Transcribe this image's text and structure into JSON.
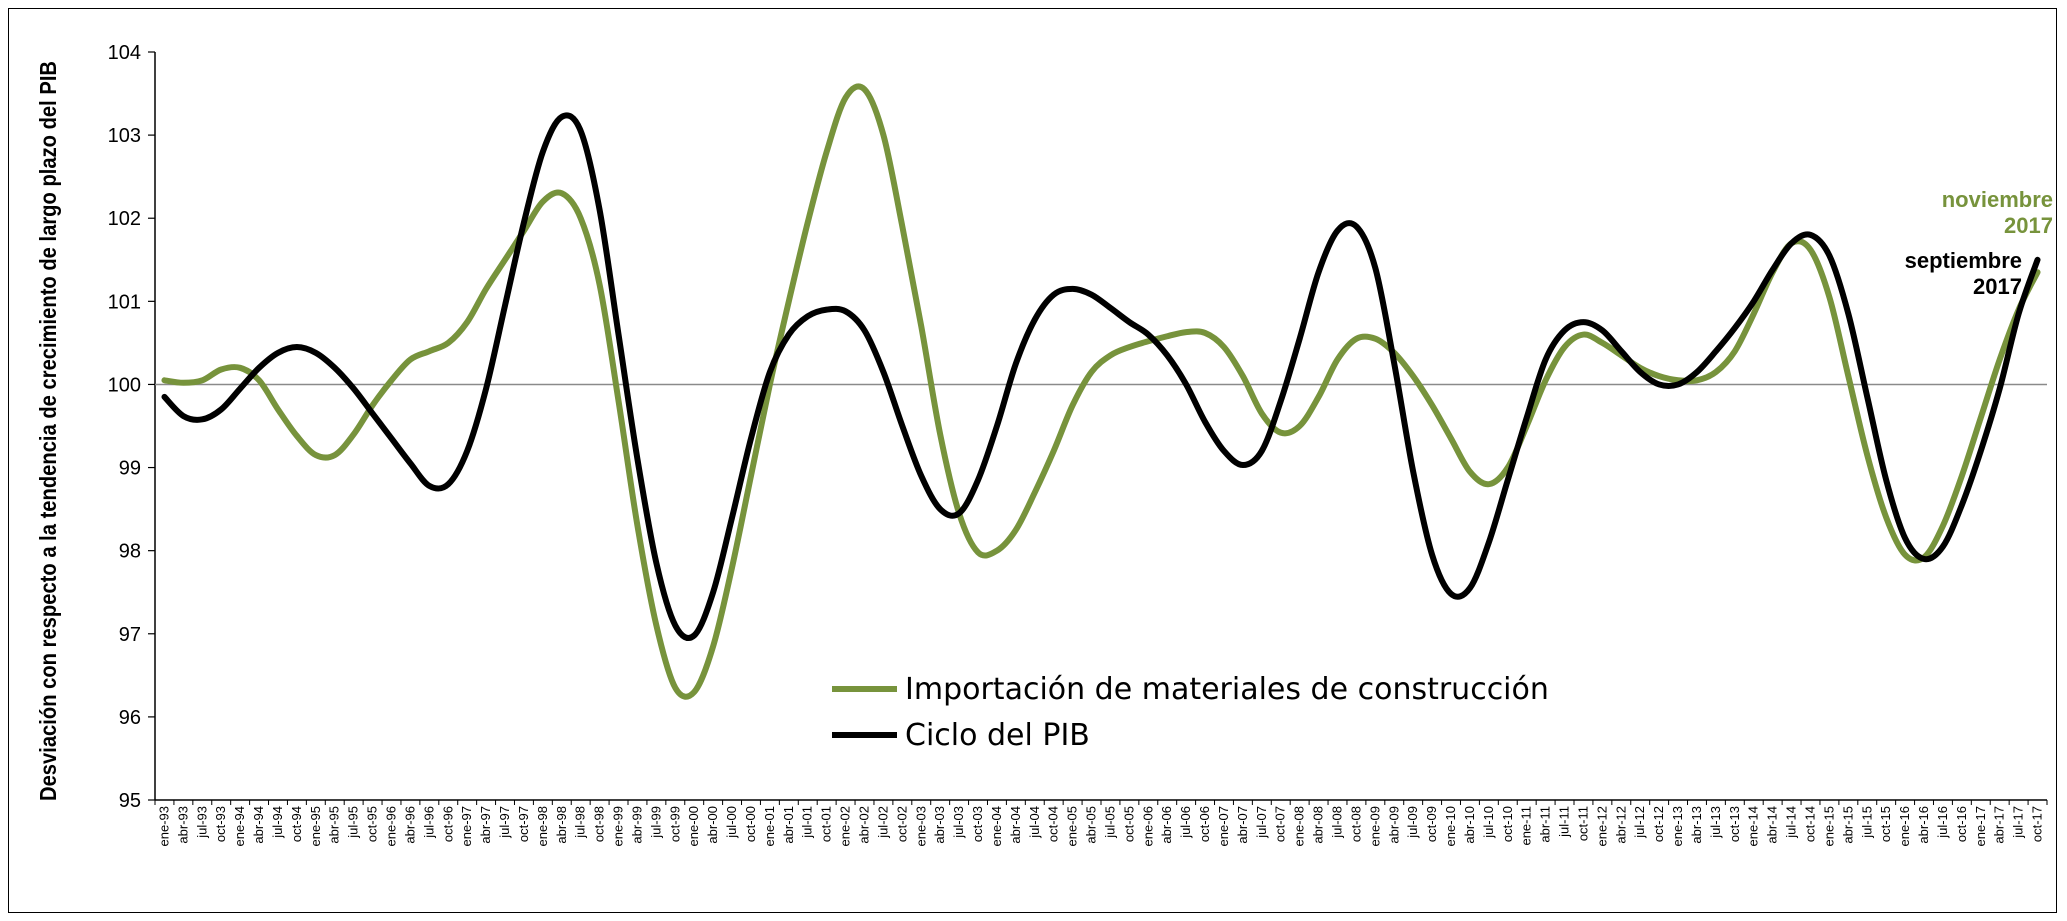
{
  "chart_data": {
    "type": "line",
    "title": "",
    "ylabel": "Desviación con respecto a la tendencia de crecimiento de largo plazo del PIB",
    "xlabel": "",
    "ylim": [
      95,
      104
    ],
    "yticks": [
      95,
      96,
      97,
      98,
      99,
      100,
      101,
      102,
      103,
      104
    ],
    "reference_line": 100,
    "grid": false,
    "legend_position": "center-bottom",
    "x_tick_labels": [
      "ene-93",
      "abr-93",
      "jul-93",
      "oct-93",
      "ene-94",
      "abr-94",
      "jul-94",
      "oct-94",
      "ene-95",
      "abr-95",
      "jul-95",
      "oct-95",
      "ene-96",
      "abr-96",
      "jul-96",
      "oct-96",
      "ene-97",
      "abr-97",
      "jul-97",
      "oct-97",
      "ene-98",
      "abr-98",
      "jul-98",
      "oct-98",
      "ene-99",
      "abr-99",
      "jul-99",
      "oct-99",
      "ene-00",
      "abr-00",
      "jul-00",
      "oct-00",
      "ene-01",
      "abr-01",
      "jul-01",
      "oct-01",
      "ene-02",
      "abr-02",
      "jul-02",
      "oct-02",
      "ene-03",
      "abr-03",
      "jul-03",
      "oct-03",
      "ene-04",
      "abr-04",
      "jul-04",
      "oct-04",
      "ene-05",
      "abr-05",
      "jul-05",
      "oct-05",
      "ene-06",
      "abr-06",
      "jul-06",
      "oct-06",
      "ene-07",
      "abr-07",
      "jul-07",
      "oct-07",
      "ene-08",
      "abr-08",
      "jul-08",
      "oct-08",
      "ene-09",
      "abr-09",
      "jul-09",
      "oct-09",
      "ene-10",
      "abr-10",
      "jul-10",
      "oct-10",
      "ene-11",
      "abr-11",
      "jul-11",
      "oct-11",
      "ene-12",
      "abr-12",
      "jul-12",
      "oct-12",
      "ene-13",
      "abr-13",
      "jul-13",
      "oct-13",
      "ene-14",
      "abr-14",
      "jul-14",
      "oct-14",
      "ene-15",
      "abr-15",
      "jul-15",
      "oct-15",
      "ene-16",
      "abr-16",
      "jul-16",
      "oct-16",
      "ene-17",
      "abr-17",
      "jul-17",
      "oct-17"
    ],
    "series": [
      {
        "name": "Importación de materiales de construcción",
        "color": "#77933c",
        "end_label": [
          "noviembre",
          "2017"
        ],
        "points": [
          [
            "ene-93",
            100.05
          ],
          [
            "abr-93",
            100.02
          ],
          [
            "jul-93",
            100.05
          ],
          [
            "oct-93",
            100.18
          ],
          [
            "ene-94",
            100.2
          ],
          [
            "abr-94",
            100.05
          ],
          [
            "jul-94",
            99.7
          ],
          [
            "oct-94",
            99.38
          ],
          [
            "ene-95",
            99.15
          ],
          [
            "abr-95",
            99.15
          ],
          [
            "jul-95",
            99.4
          ],
          [
            "oct-95",
            99.75
          ],
          [
            "ene-96",
            100.05
          ],
          [
            "abr-96",
            100.3
          ],
          [
            "jul-96",
            100.4
          ],
          [
            "oct-96",
            100.5
          ],
          [
            "ene-97",
            100.75
          ],
          [
            "abr-97",
            101.15
          ],
          [
            "jul-97",
            101.5
          ],
          [
            "oct-97",
            101.85
          ],
          [
            "ene-98",
            102.2
          ],
          [
            "abr-98",
            102.3
          ],
          [
            "jul-98",
            102.0
          ],
          [
            "oct-98",
            101.2
          ],
          [
            "ene-99",
            99.8
          ],
          [
            "abr-99",
            98.3
          ],
          [
            "jul-99",
            97.1
          ],
          [
            "oct-99",
            96.35
          ],
          [
            "ene-00",
            96.3
          ],
          [
            "abr-00",
            96.85
          ],
          [
            "jul-00",
            97.8
          ],
          [
            "oct-00",
            98.9
          ],
          [
            "ene-01",
            100.0
          ],
          [
            "abr-01",
            101.0
          ],
          [
            "jul-01",
            101.95
          ],
          [
            "oct-01",
            102.8
          ],
          [
            "ene-02",
            103.45
          ],
          [
            "abr-02",
            103.55
          ],
          [
            "jul-02",
            103.0
          ],
          [
            "oct-02",
            101.9
          ],
          [
            "ene-03",
            100.7
          ],
          [
            "abr-03",
            99.4
          ],
          [
            "jul-03",
            98.45
          ],
          [
            "oct-03",
            97.98
          ],
          [
            "ene-04",
            98.0
          ],
          [
            "abr-04",
            98.25
          ],
          [
            "jul-04",
            98.7
          ],
          [
            "oct-04",
            99.2
          ],
          [
            "ene-05",
            99.75
          ],
          [
            "abr-05",
            100.15
          ],
          [
            "jul-05",
            100.35
          ],
          [
            "oct-05",
            100.45
          ],
          [
            "ene-06",
            100.52
          ],
          [
            "abr-06",
            100.58
          ],
          [
            "jul-06",
            100.63
          ],
          [
            "oct-06",
            100.62
          ],
          [
            "ene-07",
            100.45
          ],
          [
            "abr-07",
            100.1
          ],
          [
            "jul-07",
            99.65
          ],
          [
            "oct-07",
            99.42
          ],
          [
            "ene-08",
            99.5
          ],
          [
            "abr-08",
            99.85
          ],
          [
            "jul-08",
            100.3
          ],
          [
            "oct-08",
            100.55
          ],
          [
            "ene-09",
            100.55
          ],
          [
            "abr-09",
            100.38
          ],
          [
            "jul-09",
            100.1
          ],
          [
            "oct-09",
            99.75
          ],
          [
            "ene-10",
            99.35
          ],
          [
            "abr-10",
            98.95
          ],
          [
            "jul-10",
            98.8
          ],
          [
            "oct-10",
            99.0
          ],
          [
            "ene-11",
            99.5
          ],
          [
            "abr-11",
            100.05
          ],
          [
            "jul-11",
            100.45
          ],
          [
            "oct-11",
            100.6
          ],
          [
            "ene-12",
            100.5
          ],
          [
            "abr-12",
            100.35
          ],
          [
            "jul-12",
            100.2
          ],
          [
            "oct-12",
            100.1
          ],
          [
            "ene-13",
            100.05
          ],
          [
            "abr-13",
            100.05
          ],
          [
            "jul-13",
            100.15
          ],
          [
            "oct-13",
            100.4
          ],
          [
            "ene-14",
            100.85
          ],
          [
            "abr-14",
            101.35
          ],
          [
            "jul-14",
            101.7
          ],
          [
            "oct-14",
            101.62
          ],
          [
            "ene-15",
            101.05
          ],
          [
            "abr-15",
            100.1
          ],
          [
            "jul-15",
            99.15
          ],
          [
            "oct-15",
            98.4
          ],
          [
            "ene-16",
            97.95
          ],
          [
            "abr-16",
            97.92
          ],
          [
            "jul-16",
            98.3
          ],
          [
            "oct-16",
            98.9
          ],
          [
            "ene-17",
            99.6
          ],
          [
            "abr-17",
            100.3
          ],
          [
            "jul-17",
            100.9
          ],
          [
            "oct-17",
            101.35
          ]
        ]
      },
      {
        "name": "Ciclo del PIB",
        "color": "#000000",
        "end_label": [
          "septiembre",
          "2017"
        ],
        "points": [
          [
            "ene-93",
            99.85
          ],
          [
            "abr-93",
            99.62
          ],
          [
            "jul-93",
            99.58
          ],
          [
            "oct-93",
            99.7
          ],
          [
            "ene-94",
            99.95
          ],
          [
            "abr-94",
            100.2
          ],
          [
            "jul-94",
            100.38
          ],
          [
            "oct-94",
            100.45
          ],
          [
            "ene-95",
            100.38
          ],
          [
            "abr-95",
            100.2
          ],
          [
            "jul-95",
            99.95
          ],
          [
            "oct-95",
            99.65
          ],
          [
            "ene-96",
            99.35
          ],
          [
            "abr-96",
            99.05
          ],
          [
            "jul-96",
            98.78
          ],
          [
            "oct-96",
            98.8
          ],
          [
            "ene-97",
            99.2
          ],
          [
            "abr-97",
            99.95
          ],
          [
            "jul-97",
            100.95
          ],
          [
            "oct-97",
            101.95
          ],
          [
            "ene-98",
            102.8
          ],
          [
            "abr-98",
            103.22
          ],
          [
            "jul-98",
            103.05
          ],
          [
            "oct-98",
            102.1
          ],
          [
            "ene-99",
            100.6
          ],
          [
            "abr-99",
            99.1
          ],
          [
            "jul-99",
            97.85
          ],
          [
            "oct-99",
            97.1
          ],
          [
            "ene-00",
            96.98
          ],
          [
            "abr-00",
            97.5
          ],
          [
            "jul-00",
            98.4
          ],
          [
            "oct-00",
            99.35
          ],
          [
            "ene-01",
            100.15
          ],
          [
            "abr-01",
            100.6
          ],
          [
            "jul-01",
            100.82
          ],
          [
            "oct-01",
            100.9
          ],
          [
            "ene-02",
            100.88
          ],
          [
            "abr-02",
            100.65
          ],
          [
            "jul-02",
            100.15
          ],
          [
            "oct-02",
            99.5
          ],
          [
            "ene-03",
            98.9
          ],
          [
            "abr-03",
            98.5
          ],
          [
            "jul-03",
            98.45
          ],
          [
            "oct-03",
            98.85
          ],
          [
            "ene-04",
            99.5
          ],
          [
            "abr-04",
            100.25
          ],
          [
            "jul-04",
            100.78
          ],
          [
            "oct-04",
            101.08
          ],
          [
            "ene-05",
            101.15
          ],
          [
            "abr-05",
            101.08
          ],
          [
            "jul-05",
            100.92
          ],
          [
            "oct-05",
            100.75
          ],
          [
            "ene-06",
            100.6
          ],
          [
            "abr-06",
            100.35
          ],
          [
            "jul-06",
            100.0
          ],
          [
            "oct-06",
            99.55
          ],
          [
            "ene-07",
            99.2
          ],
          [
            "abr-07",
            99.03
          ],
          [
            "jul-07",
            99.2
          ],
          [
            "oct-07",
            99.8
          ],
          [
            "ene-08",
            100.55
          ],
          [
            "abr-08",
            101.35
          ],
          [
            "jul-08",
            101.85
          ],
          [
            "oct-08",
            101.9
          ],
          [
            "ene-09",
            101.4
          ],
          [
            "abr-09",
            100.25
          ],
          [
            "jul-09",
            98.95
          ],
          [
            "oct-09",
            97.95
          ],
          [
            "ene-10",
            97.48
          ],
          [
            "abr-10",
            97.55
          ],
          [
            "jul-10",
            98.1
          ],
          [
            "oct-10",
            98.85
          ],
          [
            "ene-11",
            99.6
          ],
          [
            "abr-11",
            100.3
          ],
          [
            "jul-11",
            100.65
          ],
          [
            "oct-11",
            100.75
          ],
          [
            "ene-12",
            100.65
          ],
          [
            "abr-12",
            100.4
          ],
          [
            "jul-12",
            100.15
          ],
          [
            "oct-12",
            100.0
          ],
          [
            "ene-13",
            100.0
          ],
          [
            "abr-13",
            100.15
          ],
          [
            "jul-13",
            100.4
          ],
          [
            "oct-13",
            100.68
          ],
          [
            "ene-14",
            101.0
          ],
          [
            "abr-14",
            101.38
          ],
          [
            "jul-14",
            101.7
          ],
          [
            "oct-14",
            101.8
          ],
          [
            "ene-15",
            101.55
          ],
          [
            "abr-15",
            100.85
          ],
          [
            "jul-15",
            99.85
          ],
          [
            "oct-15",
            98.85
          ],
          [
            "ene-16",
            98.15
          ],
          [
            "abr-16",
            97.9
          ],
          [
            "jul-16",
            98.05
          ],
          [
            "oct-16",
            98.55
          ],
          [
            "ene-17",
            99.2
          ],
          [
            "abr-17",
            99.95
          ],
          [
            "jul-17",
            100.85
          ],
          [
            "oct-17",
            101.5
          ]
        ]
      }
    ]
  }
}
